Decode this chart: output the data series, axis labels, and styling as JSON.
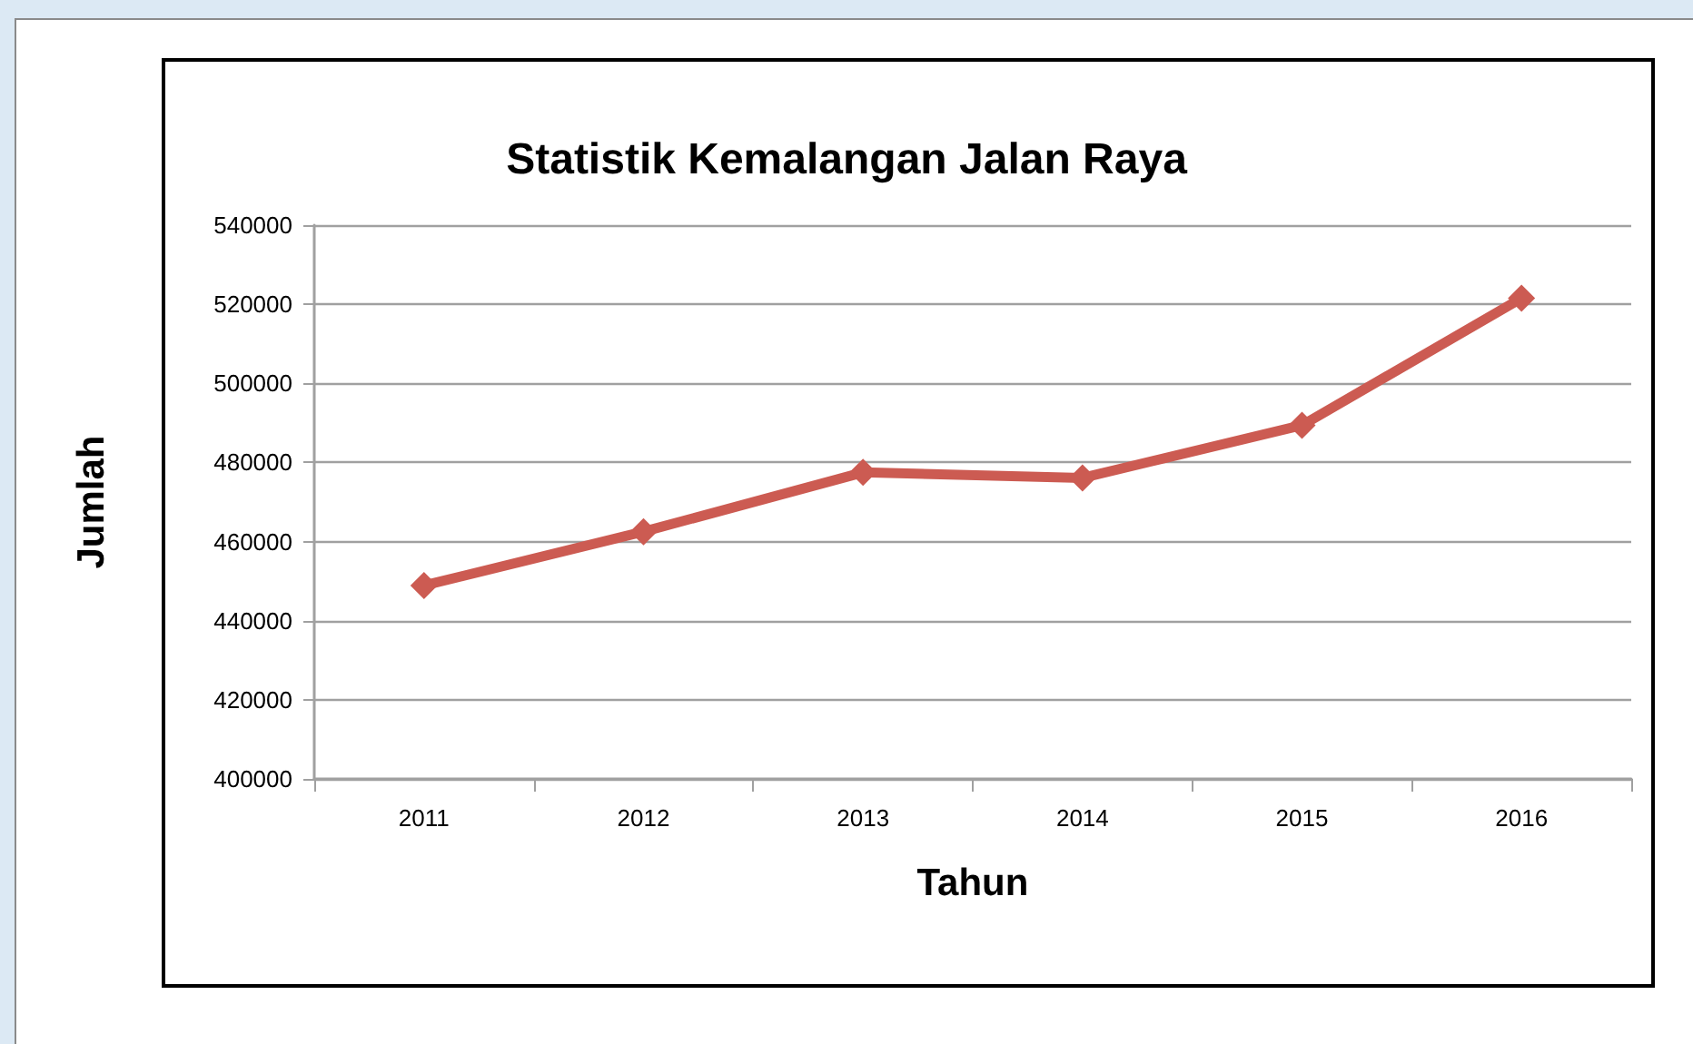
{
  "chart_data": {
    "type": "line",
    "title": "Statistik Kemalangan Jalan Raya",
    "xlabel": "Tahun",
    "ylabel": "Jumlah",
    "categories": [
      "2011",
      "2012",
      "2013",
      "2014",
      "2015",
      "2016"
    ],
    "series": [
      {
        "color": "#cc5b52",
        "values": [
          448900,
          462500,
          477500,
          476100,
          489400,
          521500
        ]
      }
    ],
    "ylim": [
      400000,
      540000
    ],
    "yticks": [
      400000,
      420000,
      440000,
      460000,
      480000,
      500000,
      520000,
      540000
    ],
    "grid": "y",
    "marker": "diamond",
    "line_style": "solid"
  }
}
